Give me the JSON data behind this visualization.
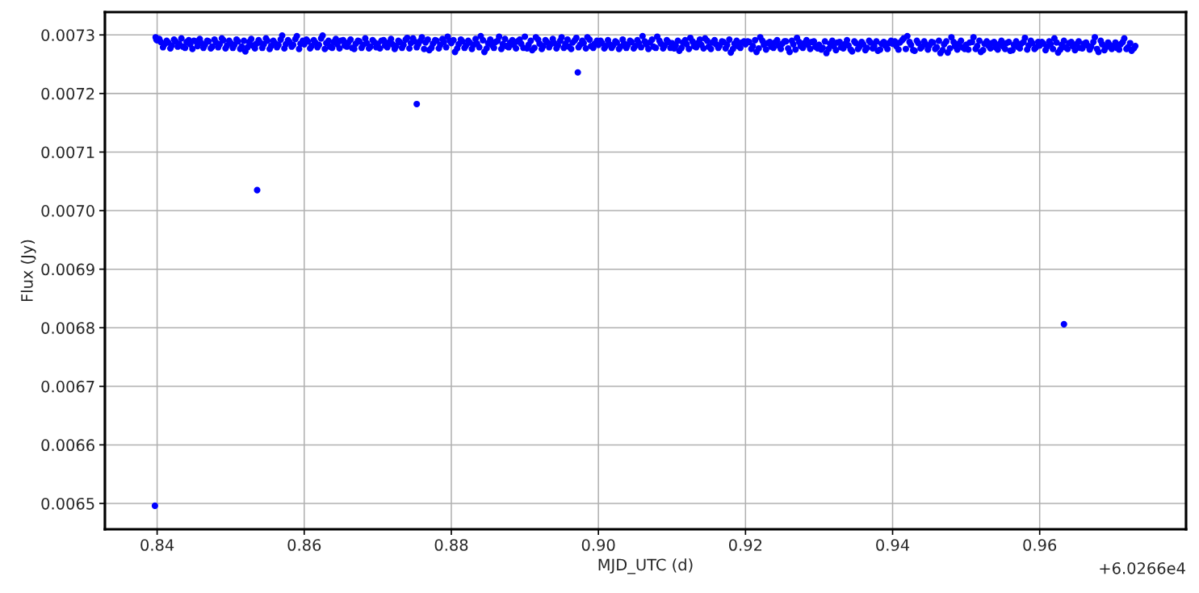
{
  "chart_data": {
    "type": "scatter",
    "xlabel": "MJD_UTC (d)",
    "ylabel": "Flux (Jy)",
    "annotations": [
      "+6.0266e4"
    ],
    "xlim": [
      0.8329,
      0.9799
    ],
    "xticks": [
      0.84,
      0.86,
      0.88,
      {
        "value": 0.9,
        "label": "0.90"
      },
      0.92,
      0.94,
      0.96
    ],
    "ylim": [
      0.0064559,
      0.007339
    ],
    "yticks": [
      0.0065,
      0.0066,
      0.0067,
      0.0068,
      0.0069,
      {
        "value": 0.007,
        "label": "0.0070"
      },
      0.0071,
      0.0072,
      0.0073
    ],
    "grid": true,
    "marker": "circle",
    "series": [
      {
        "color": "#0000ff",
        "x": [
          0.8398,
          0.8399,
          0.84,
          0.8405,
          0.841,
          0.8415,
          0.842,
          0.8425,
          0.843,
          0.8435,
          0.844,
          0.8445,
          0.845,
          0.8455,
          0.846,
          0.8465,
          0.847,
          0.8475,
          0.848,
          0.8485,
          0.849,
          0.8495,
          0.85,
          0.8505,
          0.851,
          0.8515,
          0.852,
          0.8525,
          0.853,
          0.8535,
          0.854,
          0.8545,
          0.855,
          0.8555,
          0.856,
          0.8565,
          0.857,
          0.8575,
          0.858,
          0.8585,
          0.859,
          0.8595,
          0.86,
          0.8605,
          0.861,
          0.8615,
          0.862,
          0.8625,
          0.863,
          0.8635,
          0.864,
          0.8645,
          0.865,
          0.8655,
          0.866,
          0.8665,
          0.867,
          0.8675,
          0.868,
          0.8685,
          0.869,
          0.8695,
          0.87,
          0.8705,
          0.871,
          0.8715,
          0.872,
          0.8725,
          0.873,
          0.8735,
          0.874,
          0.8745,
          0.875,
          0.8755,
          0.876,
          0.8765,
          0.877,
          0.8775,
          0.878,
          0.8785,
          0.879,
          0.8795,
          0.88,
          0.8805,
          0.881,
          0.8815,
          0.882,
          0.8825,
          0.883,
          0.8835,
          0.884,
          0.8845,
          0.885,
          0.8855,
          0.886,
          0.8865,
          0.887,
          0.8875,
          0.888,
          0.8885,
          0.889,
          0.8895,
          0.89,
          0.8905,
          0.891,
          0.8915,
          0.892,
          0.8925,
          0.893,
          0.8935,
          0.894,
          0.8945,
          0.895,
          0.8955,
          0.896,
          0.8965,
          0.897,
          0.8975,
          0.898,
          0.8985,
          0.899,
          0.8995,
          0.9,
          0.9005,
          0.901,
          0.9015,
          0.902,
          0.9025,
          0.903,
          0.9035,
          0.904,
          0.9045,
          0.905,
          0.9055,
          0.906,
          0.9065,
          0.907,
          0.9075,
          0.908,
          0.9085,
          0.909,
          0.9095,
          0.91,
          0.9105,
          0.911,
          0.9115,
          0.912,
          0.9125,
          0.913,
          0.9135,
          0.914,
          0.9145,
          0.915,
          0.9155,
          0.916,
          0.9165,
          0.917,
          0.9175,
          0.918,
          0.9185,
          0.919,
          0.9195,
          0.92,
          0.9205,
          0.921,
          0.9215,
          0.922,
          0.9225,
          0.923,
          0.9235,
          0.924,
          0.9245,
          0.925,
          0.9255,
          0.926,
          0.9265,
          0.927,
          0.9275,
          0.928,
          0.9285,
          0.929,
          0.9295,
          0.93,
          0.9305,
          0.931,
          0.9315,
          0.932,
          0.9325,
          0.933,
          0.9335,
          0.934,
          0.9345,
          0.935,
          0.9355,
          0.936,
          0.9365,
          0.937,
          0.9375,
          0.938,
          0.9385,
          0.939,
          0.9395,
          0.94,
          0.9405,
          0.941,
          0.9415,
          0.942,
          0.9425,
          0.943,
          0.9435,
          0.944,
          0.9445,
          0.945,
          0.9455,
          0.946,
          0.9465,
          0.947,
          0.9475,
          0.948,
          0.9485,
          0.949,
          0.9495,
          0.95,
          0.9505,
          0.951,
          0.9515,
          0.952,
          0.9525,
          0.953,
          0.9535,
          0.954,
          0.9545,
          0.955,
          0.9555,
          0.956,
          0.9565,
          0.957,
          0.9575,
          0.958,
          0.9585,
          0.959,
          0.9595,
          0.96,
          0.9605,
          0.961,
          0.9615,
          0.962,
          0.9625,
          0.963,
          0.9635,
          0.964,
          0.9645,
          0.965,
          0.9655,
          0.966,
          0.9665,
          0.967,
          0.9675,
          0.968,
          0.9685,
          0.969,
          0.9695,
          0.97,
          0.9705,
          0.971,
          0.9715,
          0.972,
          0.9725,
          0.973,
          0.8403,
          0.8408,
          0.8413,
          0.8418,
          0.8423,
          0.8428,
          0.8433,
          0.8438,
          0.8443,
          0.8448,
          0.8453,
          0.8458,
          0.8463,
          0.8468,
          0.8473,
          0.8478,
          0.8483,
          0.8488,
          0.8493,
          0.8498,
          0.8503,
          0.8508,
          0.8513,
          0.8518,
          0.8523,
          0.8528,
          0.8533,
          0.8538,
          0.8543,
          0.8548,
          0.8553,
          0.8558,
          0.8563,
          0.8568,
          0.8573,
          0.8578,
          0.8583,
          0.8588,
          0.8593,
          0.8598,
          0.8603,
          0.8608,
          0.8613,
          0.8618,
          0.8623,
          0.8628,
          0.8633,
          0.8638,
          0.8643,
          0.8648,
          0.8653,
          0.8658,
          0.8663,
          0.8668,
          0.8673,
          0.8678,
          0.8683,
          0.8688,
          0.8693,
          0.8698,
          0.8703,
          0.8708,
          0.8713,
          0.8718,
          0.8723,
          0.8728,
          0.8733,
          0.8738,
          0.8743,
          0.8748,
          0.8753,
          0.8758,
          0.8763,
          0.8768,
          0.8773,
          0.8778,
          0.8783,
          0.8788,
          0.8793,
          0.8798,
          0.8803,
          0.8808,
          0.8813,
          0.8818,
          0.8823,
          0.8828,
          0.8833,
          0.8838,
          0.8843,
          0.8848,
          0.8853,
          0.8858,
          0.8863,
          0.8868,
          0.8873,
          0.8878,
          0.8883,
          0.8888,
          0.8893,
          0.8898,
          0.8903,
          0.8908,
          0.8913,
          0.8918,
          0.8923,
          0.8928,
          0.8933,
          0.8938,
          0.8943,
          0.8948,
          0.8953,
          0.8958,
          0.8963,
          0.8968,
          0.8973,
          0.8978,
          0.8983,
          0.8988,
          0.8993,
          0.8998,
          0.9003,
          0.9008,
          0.9013,
          0.9018,
          0.9023,
          0.9028,
          0.9033,
          0.9038,
          0.9043,
          0.9048,
          0.9053,
          0.9058,
          0.9063,
          0.9068,
          0.9073,
          0.9078,
          0.9083,
          0.9088,
          0.9093,
          0.9098,
          0.9103,
          0.9108,
          0.9113,
          0.9118,
          0.9123,
          0.9128,
          0.9133,
          0.9138,
          0.9143,
          0.9148,
          0.9153,
          0.9158,
          0.9163,
          0.9168,
          0.9173,
          0.9178,
          0.9183,
          0.9188,
          0.9193,
          0.9198,
          0.9203,
          0.9208,
          0.9213,
          0.9218,
          0.9223,
          0.9228,
          0.9233,
          0.9238,
          0.9243,
          0.9248,
          0.9253,
          0.9258,
          0.9263,
          0.9268,
          0.9273,
          0.9278,
          0.9283,
          0.9288,
          0.9293,
          0.9298,
          0.9303,
          0.9308,
          0.9313,
          0.9318,
          0.9323,
          0.9328,
          0.9333,
          0.9338,
          0.9343,
          0.9348,
          0.9353,
          0.9358,
          0.9363,
          0.9368,
          0.9373,
          0.9378,
          0.9383,
          0.9388,
          0.9393,
          0.9398,
          0.9403,
          0.9408,
          0.9413,
          0.9418,
          0.9423,
          0.9428,
          0.9433,
          0.9438,
          0.9443,
          0.9448,
          0.9453,
          0.9458,
          0.9463,
          0.9468,
          0.9473,
          0.9478,
          0.9483,
          0.9488,
          0.9493,
          0.9498,
          0.9503,
          0.9508,
          0.9513,
          0.9518,
          0.9523,
          0.9528,
          0.9533,
          0.9538,
          0.9543,
          0.9548,
          0.9553,
          0.9558,
          0.9563,
          0.9568,
          0.9573,
          0.9578,
          0.9583,
          0.9588,
          0.9593,
          0.9598,
          0.9603,
          0.9608,
          0.9613,
          0.9618,
          0.9623,
          0.9628,
          0.9633,
          0.9638,
          0.9643,
          0.9648,
          0.9653,
          0.9658,
          0.9663,
          0.9668,
          0.9673,
          0.9678,
          0.9683,
          0.9688,
          0.9693,
          0.9698,
          0.9703,
          0.9708,
          0.9713,
          0.9718,
          0.9723,
          0.9728,
          0.8397,
          0.8536,
          0.8753,
          0.8972,
          0.9633
        ],
        "values": [
          0.007296,
          0.007292,
          0.007291,
          0.007288,
          0.007284,
          0.007287,
          0.007282,
          0.007289,
          0.007285,
          0.00728,
          0.007288,
          0.007284,
          0.00729,
          0.007281,
          0.007286,
          0.007283,
          0.007289,
          0.00728,
          0.007287,
          0.007284,
          0.007291,
          0.007282,
          0.007286,
          0.007283,
          0.007289,
          0.00728,
          0.007272,
          0.007288,
          0.007282,
          0.007285,
          0.007287,
          0.007284,
          0.00729,
          0.007281,
          0.007286,
          0.007283,
          0.007299,
          0.007284,
          0.007288,
          0.007283,
          0.007298,
          0.007285,
          0.007284,
          0.007289,
          0.007281,
          0.007287,
          0.007283,
          0.007299,
          0.007286,
          0.00728,
          0.007288,
          0.007284,
          0.00729,
          0.007282,
          0.007287,
          0.007278,
          0.007285,
          0.007289,
          0.007283,
          0.007286,
          0.00728,
          0.007288,
          0.007285,
          0.00729,
          0.007282,
          0.007287,
          0.007284,
          0.007281,
          0.007288,
          0.007283,
          0.007295,
          0.007286,
          0.007289,
          0.007284,
          0.007296,
          0.007287,
          0.007274,
          0.007285,
          0.00729,
          0.007283,
          0.007288,
          0.007297,
          0.007286,
          0.007271,
          0.007284,
          0.007289,
          0.007282,
          0.007287,
          0.007283,
          0.007285,
          0.007298,
          0.007271,
          0.007286,
          0.007283,
          0.007288,
          0.007297,
          0.007284,
          0.007281,
          0.007287,
          0.007283,
          0.007289,
          0.007285,
          0.007297,
          0.007283,
          0.007274,
          0.007296,
          0.007285,
          0.007281,
          0.007288,
          0.007284,
          0.007286,
          0.007282,
          0.007296,
          0.007285,
          0.00728,
          0.007287,
          0.007295,
          0.007283,
          0.007286,
          0.007296,
          0.007281,
          0.007285,
          0.007283,
          0.007286,
          0.007281,
          0.007284,
          0.007282,
          0.007287,
          0.00728,
          0.007285,
          0.007283,
          0.007288,
          0.007281,
          0.007286,
          0.007298,
          0.007284,
          0.007287,
          0.00728,
          0.007297,
          0.007285,
          0.007282,
          0.007288,
          0.007286,
          0.007282,
          0.007273,
          0.007287,
          0.007284,
          0.007295,
          0.007281,
          0.007286,
          0.007283,
          0.007294,
          0.00728,
          0.007287,
          0.007284,
          0.007282,
          0.007288,
          0.007283,
          0.00727,
          0.007285,
          0.007281,
          0.007287,
          0.007284,
          0.007288,
          0.007281,
          0.007271,
          0.007296,
          0.007283,
          0.007286,
          0.00728,
          0.007287,
          0.007282,
          0.007285,
          0.007289,
          0.007271,
          0.007284,
          0.007295,
          0.007281,
          0.007286,
          0.007283,
          0.007288,
          0.00728,
          0.007283,
          0.007278,
          0.007269,
          0.007285,
          0.007281,
          0.007287,
          0.007279,
          0.007284,
          0.007282,
          0.007272,
          0.007286,
          0.00728,
          0.007284,
          0.007278,
          0.007287,
          0.007281,
          0.007273,
          0.007285,
          0.007282,
          0.007286,
          0.007285,
          0.007281,
          0.007287,
          0.007294,
          0.007298,
          0.007283,
          0.007273,
          0.007286,
          0.00728,
          0.007284,
          0.007282,
          0.007287,
          0.007279,
          0.007269,
          0.007284,
          0.00727,
          0.007296,
          0.007281,
          0.007285,
          0.007279,
          0.007283,
          0.007287,
          0.007296,
          0.007281,
          0.007271,
          0.007285,
          0.007282,
          0.007286,
          0.007279,
          0.007284,
          0.007281,
          0.007286,
          0.007273,
          0.007283,
          0.00728,
          0.007285,
          0.007295,
          0.007282,
          0.007286,
          0.007279,
          0.007282,
          0.007285,
          0.00728,
          0.007284,
          0.007294,
          0.00727,
          0.007283,
          0.007279,
          0.007286,
          0.007281,
          0.007284,
          0.007278,
          0.007285,
          0.007282,
          0.00728,
          0.007296,
          0.007271,
          0.007284,
          0.007279,
          0.007283,
          0.007281,
          0.007278,
          0.007284,
          0.007294,
          0.007279,
          0.007273,
          0.007281,
          0.007293,
          0.007279,
          0.00729,
          0.007277,
          0.007292,
          0.00728,
          0.007294,
          0.007278,
          0.007291,
          0.007276,
          0.007289,
          0.007293,
          0.007278,
          0.00729,
          0.007277,
          0.007292,
          0.007279,
          0.007294,
          0.007277,
          0.00729,
          0.007278,
          0.007292,
          0.007276,
          0.00729,
          0.007279,
          0.007293,
          0.007277,
          0.007291,
          0.007278,
          0.007294,
          0.007276,
          0.00729,
          0.007279,
          0.007292,
          0.007277,
          0.007291,
          0.00728,
          0.007293,
          0.007276,
          0.00729,
          0.007292,
          0.007277,
          0.007291,
          0.007279,
          0.007294,
          0.007276,
          0.00729,
          0.007278,
          0.007293,
          0.007277,
          0.007291,
          0.00728,
          0.007292,
          0.007276,
          0.00729,
          0.007278,
          0.007294,
          0.007277,
          0.007291,
          0.007279,
          0.007277,
          0.007291,
          0.007279,
          0.007293,
          0.007276,
          0.00729,
          0.007278,
          0.007292,
          0.007277,
          0.007294,
          0.007279,
          0.00729,
          0.007276,
          0.007292,
          0.007278,
          0.007291,
          0.007277,
          0.007293,
          0.007279,
          0.00729,
          0.007291,
          0.007277,
          0.007292,
          0.007278,
          0.00729,
          0.007276,
          0.007293,
          0.007279,
          0.007291,
          0.007277,
          0.007292,
          0.007278,
          0.00729,
          0.007276,
          0.007293,
          0.007279,
          0.007291,
          0.007277,
          0.007292,
          0.007278,
          0.007277,
          0.00729,
          0.007278,
          0.007292,
          0.007276,
          0.007291,
          0.007279,
          0.007293,
          0.007277,
          0.00729,
          0.007278,
          0.007292,
          0.007276,
          0.007291,
          0.007279,
          0.00729,
          0.007277,
          0.007292,
          0.007278,
          0.00729,
          0.00729,
          0.007277,
          0.007291,
          0.007278,
          0.007289,
          0.007276,
          0.007292,
          0.007278,
          0.00729,
          0.007277,
          0.007291,
          0.007279,
          0.007289,
          0.007276,
          0.007292,
          0.007278,
          0.00729,
          0.007277,
          0.007291,
          0.007278,
          0.007277,
          0.00729,
          0.007278,
          0.007291,
          0.007276,
          0.007289,
          0.007279,
          0.007292,
          0.007277,
          0.00729,
          0.007276,
          0.007291,
          0.007278,
          0.007289,
          0.007277,
          0.007292,
          0.007276,
          0.00729,
          0.007278,
          0.007289,
          0.007289,
          0.007276,
          0.007291,
          0.007277,
          0.00729,
          0.007275,
          0.007288,
          0.007278,
          0.007291,
          0.007276,
          0.007289,
          0.007277,
          0.00729,
          0.007275,
          0.007288,
          0.007278,
          0.007291,
          0.007276,
          0.007289,
          0.007277,
          0.007275,
          0.007289,
          0.007276,
          0.00729,
          0.007274,
          0.007288,
          0.007277,
          0.007291,
          0.007275,
          0.007289,
          0.007276,
          0.007288,
          0.007274,
          0.00729,
          0.007277,
          0.007289,
          0.007275,
          0.007288,
          0.007276,
          0.00729,
          0.007289,
          0.007275,
          0.007291,
          0.007276,
          0.007288,
          0.007274,
          0.00729,
          0.007277,
          0.007289,
          0.007275,
          0.007288,
          0.007276,
          0.00729,
          0.007274,
          0.007289,
          0.007277,
          0.007288,
          0.007275,
          0.00729,
          0.007276,
          0.007275,
          0.007288,
          0.007276,
          0.00729,
          0.007274,
          0.007289,
          0.007277,
          0.007288,
          0.007275,
          0.00729,
          0.007276,
          0.007288,
          0.007274,
          0.007289,
          0.007277,
          0.007288,
          0.007275,
          0.00729,
          0.007276,
          0.007288,
          0.007288,
          0.007274,
          0.007289,
          0.007276,
          0.007287,
          0.007275,
          0.00729,
          0.007276,
          0.007288,
          0.007274,
          0.007289,
          0.007277,
          0.007287,
          0.007275,
          0.007288,
          0.007276,
          0.00729,
          0.007274,
          0.007287,
          0.007276,
          0.007287,
          0.007275,
          0.007288,
          0.007276,
          0.007286,
          0.007277,
          0.006496,
          0.007035,
          0.007182,
          0.007236,
          0.006806
        ]
      }
    ]
  }
}
